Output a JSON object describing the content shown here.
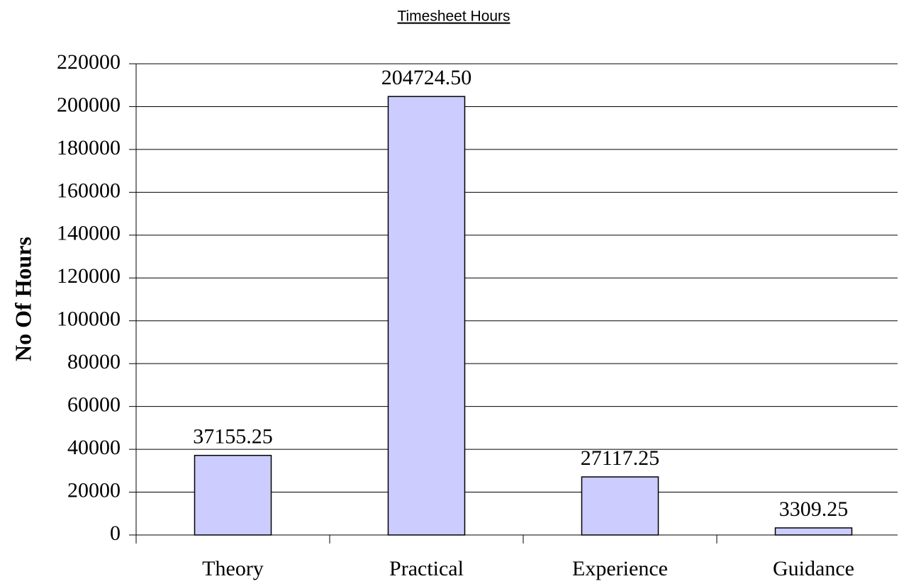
{
  "chart_data": {
    "type": "bar",
    "title": "Timesheet Hours",
    "y_label": "No Of Hours",
    "categories": [
      "Theory",
      "Practical",
      "Experience",
      "Guidance"
    ],
    "values": [
      37155.25,
      204724.5,
      27117.25,
      3309.25
    ],
    "value_labels": [
      "37155.25",
      "204724.50",
      "27117.25",
      "3309.25"
    ],
    "color": "#ccccff",
    "ylim": [
      0,
      220000
    ],
    "yticks": [
      0,
      20000,
      40000,
      60000,
      80000,
      100000,
      120000,
      140000,
      160000,
      180000,
      200000,
      220000
    ],
    "grid": true
  }
}
